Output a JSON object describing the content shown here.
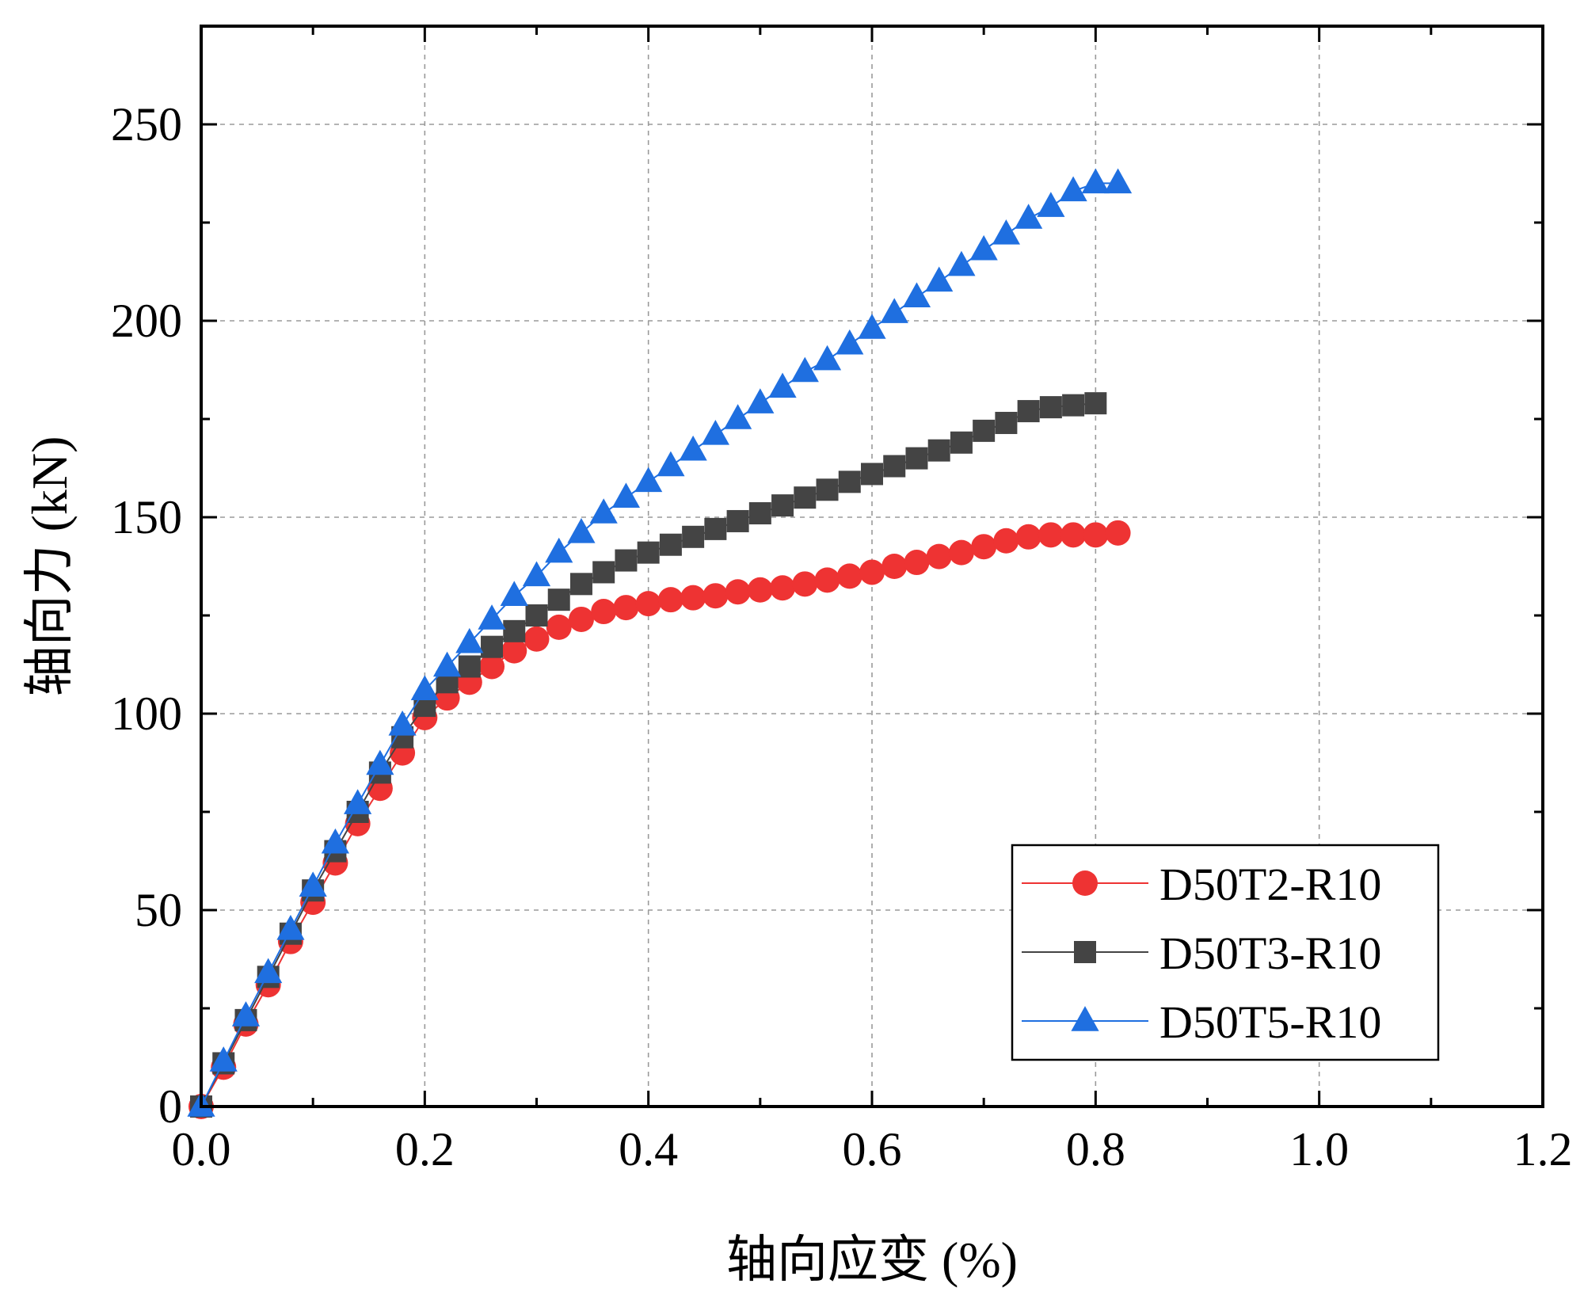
{
  "chart_data": {
    "type": "line",
    "title": "",
    "xlabel": "轴向应变 (%)",
    "ylabel": "轴向力 (kN)",
    "xlim": [
      0,
      1.2
    ],
    "ylim": [
      0,
      275
    ],
    "xticks": [
      0.0,
      0.2,
      0.4,
      0.6,
      0.8,
      1.0,
      1.2
    ],
    "xtick_labels": [
      "0.0",
      "0.2",
      "0.4",
      "0.6",
      "0.8",
      "1.0",
      "1.2"
    ],
    "yticks": [
      0,
      50,
      100,
      150,
      200,
      250
    ],
    "ytick_labels": [
      "0",
      "50",
      "100",
      "150",
      "200",
      "250"
    ],
    "grid": true,
    "legend_position": "bottom-right",
    "series": [
      {
        "name": "D50T2-R10",
        "color": "#ee3333",
        "marker": "circle",
        "x": [
          0,
          0.02,
          0.04,
          0.06,
          0.08,
          0.1,
          0.12,
          0.14,
          0.16,
          0.18,
          0.2,
          0.22,
          0.24,
          0.26,
          0.28,
          0.3,
          0.32,
          0.34,
          0.36,
          0.38,
          0.4,
          0.42,
          0.44,
          0.46,
          0.48,
          0.5,
          0.52,
          0.54,
          0.56,
          0.58,
          0.6,
          0.62,
          0.64,
          0.66,
          0.68,
          0.7,
          0.72,
          0.74,
          0.76,
          0.78,
          0.8,
          0.82
        ],
        "y": [
          0,
          10,
          21,
          31,
          42,
          52,
          62,
          72,
          81,
          90,
          99,
          104,
          108,
          112,
          116,
          119,
          122,
          124,
          126,
          127,
          128,
          129,
          129.5,
          130,
          131,
          131.5,
          132,
          133,
          134,
          135,
          136,
          137.5,
          138.5,
          140,
          141,
          142.5,
          144,
          145,
          145.5,
          145.5,
          145.5,
          146
        ]
      },
      {
        "name": "D50T3-R10",
        "color": "#444444",
        "marker": "square",
        "x": [
          0,
          0.02,
          0.04,
          0.06,
          0.08,
          0.1,
          0.12,
          0.14,
          0.16,
          0.18,
          0.2,
          0.22,
          0.24,
          0.26,
          0.28,
          0.3,
          0.32,
          0.34,
          0.36,
          0.38,
          0.4,
          0.42,
          0.44,
          0.46,
          0.48,
          0.5,
          0.52,
          0.54,
          0.56,
          0.58,
          0.6,
          0.62,
          0.64,
          0.66,
          0.68,
          0.7,
          0.72,
          0.74,
          0.76,
          0.78,
          0.8
        ],
        "y": [
          0,
          11,
          22,
          33,
          44,
          55,
          65,
          75,
          85,
          94,
          102,
          108,
          112,
          117,
          121,
          125,
          129,
          133,
          136,
          139,
          141,
          143,
          145,
          147,
          149,
          151,
          153,
          155,
          157,
          159,
          161,
          163,
          165,
          167,
          169,
          172,
          174,
          177,
          178,
          178.5,
          179
        ]
      },
      {
        "name": "D50T5-R10",
        "color": "#1f6fe0",
        "marker": "triangle",
        "x": [
          0,
          0.02,
          0.04,
          0.06,
          0.08,
          0.1,
          0.12,
          0.14,
          0.16,
          0.18,
          0.2,
          0.22,
          0.24,
          0.26,
          0.28,
          0.3,
          0.32,
          0.34,
          0.36,
          0.38,
          0.4,
          0.42,
          0.44,
          0.46,
          0.48,
          0.5,
          0.52,
          0.54,
          0.56,
          0.58,
          0.6,
          0.62,
          0.64,
          0.66,
          0.68,
          0.7,
          0.72,
          0.74,
          0.76,
          0.78,
          0.8,
          0.82
        ],
        "y": [
          0,
          11.5,
          23,
          34,
          45,
          56,
          67,
          77,
          87,
          97,
          106,
          112,
          118,
          124,
          130,
          135,
          141,
          146,
          151,
          155,
          159,
          163,
          167,
          171,
          175,
          179,
          183,
          187,
          190,
          194,
          198,
          202,
          206,
          210,
          214,
          218,
          222,
          226,
          229,
          233,
          235,
          235
        ]
      }
    ]
  }
}
